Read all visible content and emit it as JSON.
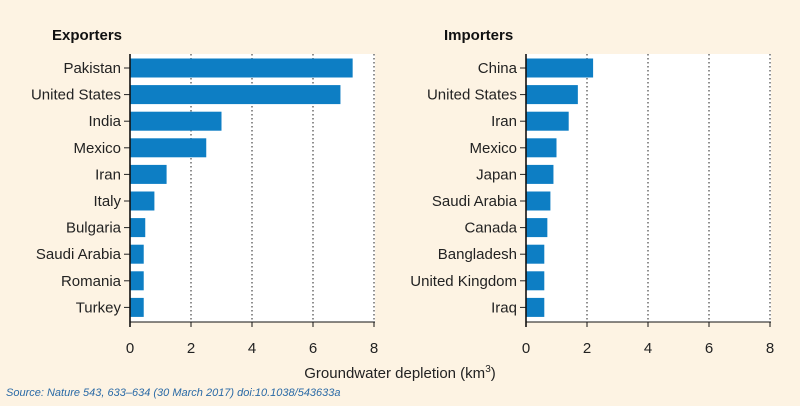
{
  "chart_data": [
    {
      "type": "bar",
      "orientation": "horizontal",
      "title": "Exporters",
      "categories": [
        "Pakistan",
        "United States",
        "India",
        "Mexico",
        "Iran",
        "Italy",
        "Bulgaria",
        "Saudi Arabia",
        "Romania",
        "Turkey"
      ],
      "values": [
        7.3,
        6.9,
        3.0,
        2.5,
        1.2,
        0.8,
        0.5,
        0.45,
        0.45,
        0.45
      ],
      "xlim": [
        0,
        8
      ],
      "xticks": [
        0,
        2,
        4,
        6,
        8
      ],
      "grid": "vertical-dotted",
      "bar_color": "#0d7ec4"
    },
    {
      "type": "bar",
      "orientation": "horizontal",
      "title": "Importers",
      "categories": [
        "China",
        "United States",
        "Iran",
        "Mexico",
        "Japan",
        "Saudi Arabia",
        "Canada",
        "Bangladesh",
        "United Kingdom",
        "Iraq"
      ],
      "values": [
        2.2,
        1.7,
        1.4,
        1.0,
        0.9,
        0.8,
        0.7,
        0.6,
        0.6,
        0.6
      ],
      "xlim": [
        0,
        8
      ],
      "xticks": [
        0,
        2,
        4,
        6,
        8
      ],
      "grid": "vertical-dotted",
      "bar_color": "#0d7ec4"
    }
  ],
  "xlabel": "Groundwater depletion (km",
  "xlabel_superscript": "3",
  "xlabel_suffix": ")",
  "source": "Source: Nature 543, 633–634 (30 March 2017) doi:10.1038/543633a",
  "colors": {
    "background": "#fdf3e3",
    "plot_background": "#ffffff",
    "bar": "#0d7ec4",
    "source_text": "#2a6aa6"
  }
}
